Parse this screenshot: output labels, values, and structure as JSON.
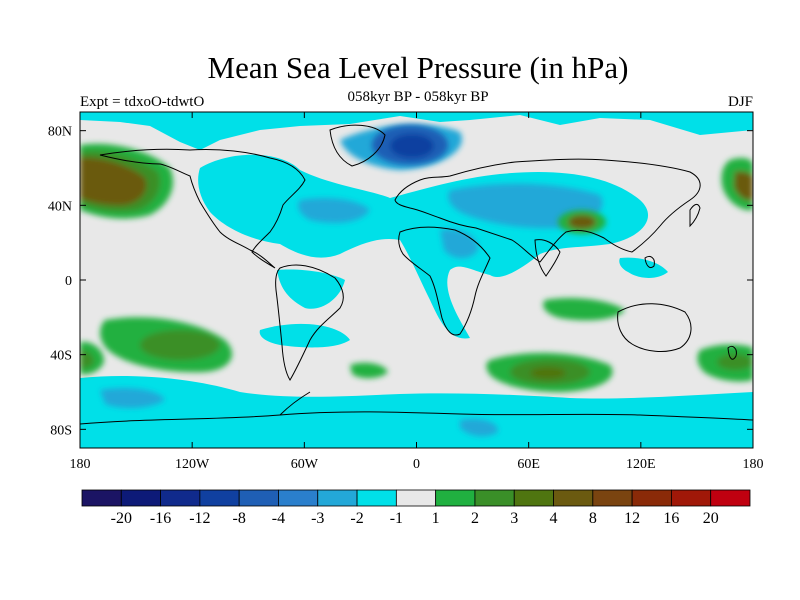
{
  "title": "Mean Sea Level Pressure (in hPa)",
  "subtitle": "058kyr BP - 058kyr BP",
  "experiment_label": "Expt = tdxoO-tdwtO",
  "season_label": "DJF",
  "map": {
    "lat_labels": [
      "80N",
      "40N",
      "0",
      "40S",
      "80S"
    ],
    "lat_values": [
      80,
      40,
      0,
      -40,
      -80
    ],
    "lon_labels": [
      "180",
      "120W",
      "60W",
      "0",
      "60E",
      "120E",
      "180"
    ],
    "lon_values": [
      -180,
      -120,
      -60,
      0,
      60,
      120,
      180
    ],
    "lon_range": [
      -180,
      180
    ],
    "lat_range": [
      -90,
      90
    ]
  },
  "colorbar": {
    "colors": [
      "#1b1464",
      "#0d1a78",
      "#102a8c",
      "#1040a0",
      "#1f5fb5",
      "#2a7fcc",
      "#23a8d8",
      "#00e0e8",
      "#e8e8e8",
      "#20b040",
      "#3a8f28",
      "#4f7510",
      "#6b5a10",
      "#7a4410",
      "#8a2a08",
      "#a01808",
      "#c00010"
    ],
    "labels": [
      "-20",
      "-16",
      "-12",
      "-8",
      "-4",
      "-3",
      "-2",
      "-1",
      "1",
      "2",
      "3",
      "4",
      "8",
      "12",
      "16",
      "20"
    ]
  }
}
